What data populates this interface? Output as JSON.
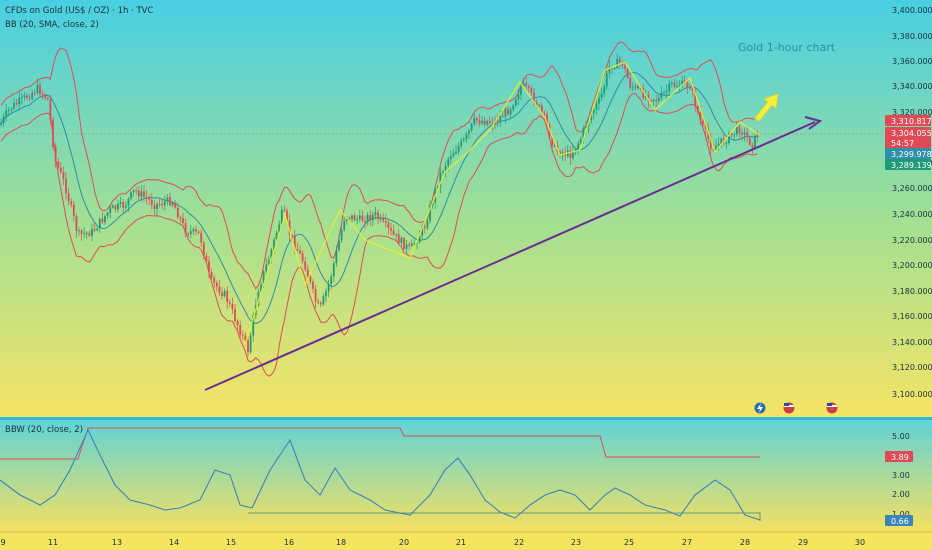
{
  "header": {
    "symbol_line": "CFDs on Gold (US$ / OZ) · 1h · TVC",
    "indicator_line": "BB (20, SMA, close, 2)",
    "annotation": "Gold 1-hour chart"
  },
  "bbw": {
    "label": "BBW (20, close, 2)"
  },
  "colors": {
    "bg_top": "#48cfe3",
    "bg_bottom": "#f3e466",
    "candle_up": "#1f9a78",
    "candle_down": "#e04a55",
    "bb_bands": "#e04d55",
    "bb_basis": "#2d8fa8",
    "trendline": "#6a2e93",
    "arrow": "#f4ef3a",
    "bbw_line": "#3a84b8",
    "bbw_upper": "#e04d55"
  },
  "price_axis": {
    "ticks": [
      "3,400.000",
      "3,380.000",
      "3,360.000",
      "3,340.000",
      "3,320.000",
      "3,280.000",
      "3,260.000",
      "3,240.000",
      "3,220.000",
      "3,200.000",
      "3,180.000",
      "3,160.000",
      "3,140.000",
      "3,120.000",
      "3,100.000"
    ],
    "badges": [
      {
        "text": "3,310.817",
        "color": "#e04a55"
      },
      {
        "text": "3,304.055",
        "color": "#e04a55"
      },
      {
        "text": "54:57",
        "color": "#e04a55"
      },
      {
        "text": "3,299.978",
        "color": "#2d8fa8"
      },
      {
        "text": "3,289.139",
        "color": "#1f9a78"
      }
    ]
  },
  "bbw_axis": {
    "ticks": [
      "5.00",
      "3.00",
      "2.00",
      "1.00"
    ],
    "badges": [
      {
        "text": "3.89",
        "color": "#e04a55"
      },
      {
        "text": "0.66",
        "color": "#3a84b8"
      }
    ]
  },
  "time_axis": [
    "9",
    "11",
    "13",
    "14",
    "15",
    "16",
    "18",
    "20",
    "21",
    "22",
    "23",
    "25",
    "27",
    "28",
    "29",
    "30"
  ],
  "chart_data": [
    {
      "type": "line",
      "title": "CFDs on Gold (US$ / OZ) · 1h · TVC",
      "x": [
        "9",
        "11",
        "13",
        "14",
        "15",
        "16",
        "18",
        "20",
        "21",
        "22",
        "23",
        "25",
        "27",
        "28"
      ],
      "series": [
        {
          "name": "BB (20, SMA, close, 2)",
          "values": [
            3300,
            3330,
            3250,
            3235,
            3130,
            3245,
            3215,
            3220,
            3290,
            3315,
            3285,
            3345,
            3300,
            3304
          ]
        }
      ],
      "ylim": [
        3095,
        3405
      ],
      "last_price": 3304.055
    },
    {
      "type": "line",
      "title": "BBW (20, close, 2)",
      "x": [
        "9",
        "11",
        "13",
        "14",
        "15",
        "16",
        "18",
        "20",
        "21",
        "22",
        "23",
        "25",
        "27",
        "28"
      ],
      "series": [
        {
          "name": "BBW (20, close, 2)",
          "values": [
            1.6,
            5.0,
            1.4,
            1.2,
            0.9,
            4.2,
            1.5,
            0.8,
            4.1,
            0.66,
            2.4,
            2.6,
            0.7,
            0.66
          ]
        }
      ],
      "ylim": [
        0.5,
        5.5
      ]
    }
  ]
}
